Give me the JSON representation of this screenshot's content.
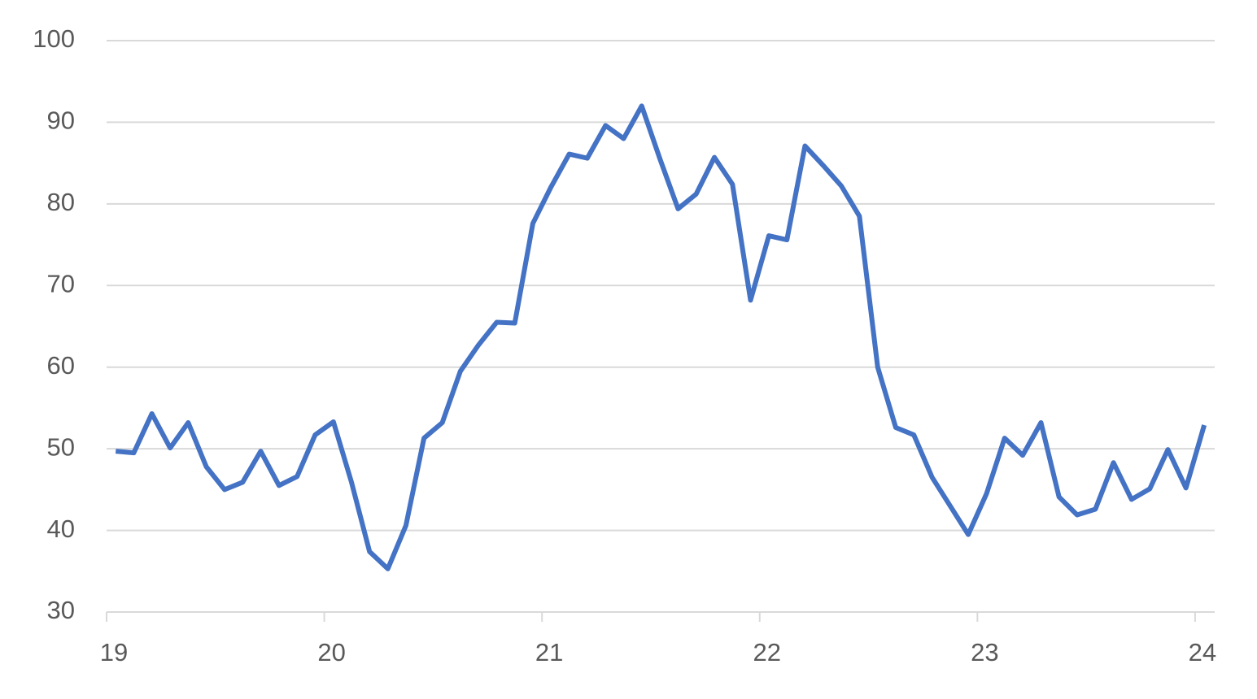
{
  "chart_data": {
    "type": "line",
    "x": [
      19.042,
      19.125,
      19.208,
      19.292,
      19.375,
      19.458,
      19.542,
      19.625,
      19.708,
      19.792,
      19.875,
      19.958,
      20.042,
      20.125,
      20.208,
      20.292,
      20.375,
      20.458,
      20.542,
      20.625,
      20.708,
      20.792,
      20.875,
      20.958,
      21.042,
      21.125,
      21.208,
      21.292,
      21.375,
      21.458,
      21.542,
      21.625,
      21.708,
      21.792,
      21.875,
      21.958,
      22.042,
      22.125,
      22.208,
      22.292,
      22.375,
      22.458,
      22.542,
      22.625,
      22.708,
      22.792,
      22.875,
      22.958,
      23.042,
      23.125,
      23.208,
      23.292,
      23.375,
      23.458,
      23.542,
      23.625,
      23.708,
      23.792,
      23.875,
      23.958,
      24.042
    ],
    "series": [
      {
        "color": "#4472c4",
        "values": [
          49.7,
          49.5,
          54.3,
          50.1,
          53.2,
          47.8,
          45.0,
          45.9,
          49.7,
          45.5,
          46.6,
          51.7,
          53.3,
          45.9,
          37.4,
          35.3,
          40.6,
          51.3,
          53.2,
          59.5,
          62.7,
          65.5,
          65.4,
          77.6,
          82.1,
          86.1,
          85.6,
          89.6,
          88.0,
          92.0,
          85.5,
          79.4,
          81.2,
          85.7,
          82.4,
          68.2,
          76.1,
          75.6,
          87.1,
          84.7,
          82.2,
          78.5,
          60.0,
          52.6,
          51.7,
          46.5,
          43.0,
          39.5,
          44.5,
          51.3,
          49.2,
          53.2,
          44.1,
          41.9,
          42.6,
          48.3,
          43.8,
          45.1,
          49.9,
          45.2,
          52.9
        ]
      }
    ],
    "xlim": [
      19,
      24.09
    ],
    "xticks": [
      19,
      20,
      21,
      22,
      23,
      24
    ],
    "ylim": [
      30,
      100
    ],
    "yticks": [
      30,
      40,
      50,
      60,
      70,
      80,
      90,
      100
    ],
    "grid": true
  }
}
